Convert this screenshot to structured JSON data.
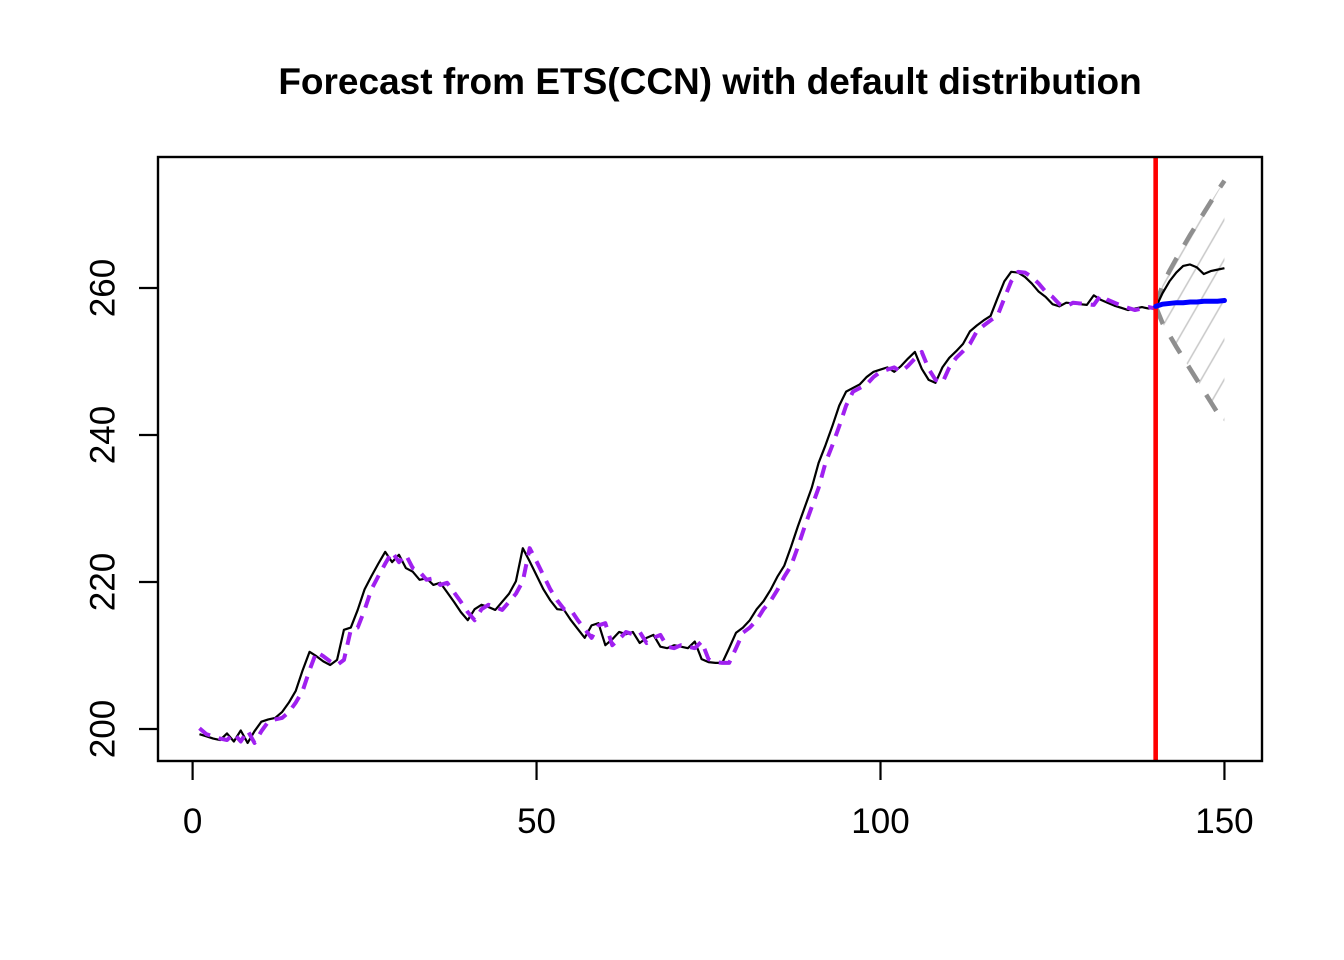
{
  "chart_data": {
    "type": "line",
    "title": "Forecast from ETS(CCN) with default distribution",
    "xlabel": "",
    "ylabel": "",
    "x_ticks": [
      0,
      50,
      100,
      150
    ],
    "y_ticks": [
      200,
      220,
      240,
      260
    ],
    "xlim": [
      -5,
      155.5
    ],
    "ylim": [
      195.6,
      277.8
    ],
    "grid": false,
    "legend": "none",
    "forecast_origin_x": 140,
    "colors": {
      "observed": "#000000",
      "fitted": "#A020F0",
      "forecast_mean": "#0000FF",
      "interval_bound": "#8F8F8F",
      "interval_hatch": "#C8C8C8",
      "origin_line": "#FF0000",
      "box": "#000000"
    },
    "series": [
      {
        "name": "observed",
        "style": "solid",
        "x_start": 1,
        "values": [
          199.3,
          199.0,
          198.7,
          198.5,
          199.4,
          198.3,
          199.8,
          198.1,
          199.7,
          201.0,
          201.3,
          201.5,
          202.3,
          203.6,
          205.2,
          208.0,
          210.5,
          209.9,
          209.2,
          208.7,
          209.4,
          213.5,
          213.8,
          216.2,
          219.0,
          220.8,
          222.5,
          224.1,
          222.7,
          223.7,
          221.9,
          221.4,
          220.3,
          220.5,
          219.6,
          219.9,
          218.6,
          217.3,
          215.9,
          214.8,
          216.3,
          216.9,
          216.6,
          216.2,
          217.3,
          218.4,
          220.1,
          224.6,
          222.8,
          220.9,
          219.0,
          217.5,
          216.3,
          216.2,
          214.8,
          213.6,
          212.4,
          214.1,
          214.4,
          211.4,
          212.2,
          213.2,
          212.9,
          213.2,
          211.7,
          212.4,
          212.8,
          211.2,
          211.0,
          211.4,
          211.2,
          211.0,
          211.9,
          209.5,
          209.1,
          209.0,
          209.0,
          211.0,
          213.1,
          213.8,
          214.8,
          216.3,
          217.4,
          218.9,
          220.7,
          222.2,
          224.8,
          227.6,
          230.2,
          232.8,
          236.2,
          238.6,
          241.2,
          244.0,
          245.9,
          246.4,
          246.9,
          247.9,
          248.6,
          248.9,
          249.2,
          248.6,
          249.4,
          250.4,
          251.3,
          249.0,
          247.5,
          247.1,
          249.2,
          250.5,
          251.4,
          252.4,
          254.1,
          254.9,
          255.6,
          256.2,
          258.6,
          260.9,
          262.2,
          262.1,
          261.5,
          260.6,
          259.5,
          258.8,
          257.8,
          257.5,
          258.0,
          257.9,
          257.8,
          257.7,
          259.0,
          258.4,
          258.0,
          257.6,
          257.3,
          257.0,
          257.2,
          257.4,
          257.2,
          257.3
        ]
      },
      {
        "name": "fitted",
        "style": "dashed",
        "x_start": 1,
        "values": [
          200.1,
          199.3,
          199.0,
          198.7,
          198.5,
          199.4,
          198.3,
          199.8,
          198.1,
          199.7,
          201.0,
          201.3,
          201.5,
          202.3,
          203.6,
          205.2,
          208.0,
          210.5,
          209.9,
          209.2,
          208.7,
          209.4,
          213.5,
          213.8,
          216.2,
          219.0,
          220.8,
          222.5,
          224.1,
          222.7,
          223.7,
          221.9,
          221.4,
          220.3,
          220.5,
          219.6,
          219.9,
          218.6,
          217.3,
          215.9,
          214.8,
          216.3,
          216.9,
          216.6,
          216.2,
          217.3,
          218.4,
          220.1,
          224.6,
          222.8,
          220.9,
          219.0,
          217.5,
          216.3,
          216.2,
          214.8,
          213.6,
          212.4,
          214.1,
          214.4,
          211.4,
          212.2,
          213.2,
          212.9,
          213.2,
          211.7,
          212.4,
          212.8,
          211.2,
          211.0,
          211.4,
          211.2,
          211.0,
          211.9,
          209.5,
          209.1,
          209.0,
          209.0,
          211.0,
          213.1,
          213.8,
          214.8,
          216.3,
          217.4,
          218.9,
          220.7,
          222.2,
          224.8,
          227.6,
          230.2,
          232.8,
          236.2,
          238.6,
          241.2,
          244.0,
          245.9,
          246.4,
          246.9,
          247.9,
          248.6,
          248.9,
          249.2,
          248.6,
          249.4,
          250.4,
          251.3,
          249.0,
          247.5,
          247.1,
          249.2,
          250.5,
          251.4,
          252.4,
          254.1,
          254.9,
          255.6,
          256.2,
          258.6,
          260.9,
          262.2,
          262.1,
          261.5,
          260.6,
          259.5,
          258.8,
          257.8,
          257.5,
          258.0,
          257.9,
          257.8,
          257.7,
          259.0,
          258.4,
          258.0,
          257.6,
          257.3,
          257.0,
          257.2,
          257.4,
          257.2
        ]
      },
      {
        "name": "future_actual",
        "style": "solid",
        "x_start": 140,
        "values": [
          257.3,
          259.3,
          260.9,
          262.1,
          263.0,
          263.2,
          262.8,
          261.9,
          262.3,
          262.5,
          262.7
        ]
      },
      {
        "name": "forecast_mean",
        "style": "solid_thick",
        "x_start": 140,
        "values": [
          257.5,
          257.8,
          257.9,
          258.0,
          258.0,
          258.1,
          258.1,
          258.2,
          258.2,
          258.2,
          258.3
        ]
      },
      {
        "name": "upper_interval",
        "style": "dashed_gray",
        "x_start": 140,
        "values": [
          257.5,
          260.4,
          262.3,
          264.0,
          265.6,
          267.2,
          268.7,
          270.2,
          271.7,
          273.2,
          274.6
        ]
      },
      {
        "name": "lower_interval",
        "style": "dashed_gray",
        "x_start": 140,
        "values": [
          257.5,
          255.2,
          253.6,
          252.0,
          250.5,
          249.0,
          247.5,
          246.0,
          244.5,
          243.0,
          241.8
        ]
      }
    ]
  }
}
